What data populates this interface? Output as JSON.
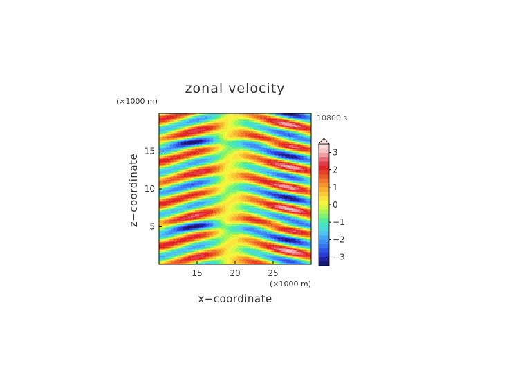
{
  "chart_data": {
    "type": "heatmap",
    "title": "zonal velocity",
    "xlabel": "x−coordinate",
    "ylabel": "z−coordinate",
    "x_unit": "(×1000 m)",
    "y_unit": "(×1000 m)",
    "time_label": "10800 s",
    "xlim": [
      10,
      30
    ],
    "ylim": [
      0,
      20
    ],
    "x_ticks": [
      15,
      20,
      25
    ],
    "y_ticks": [
      5,
      10,
      15
    ],
    "colorbar": {
      "ticks": [
        3,
        2,
        1,
        0,
        -1,
        -2,
        -3
      ],
      "levels": [
        -3.5,
        -3.25,
        -3,
        -2.75,
        -2.5,
        -2.25,
        -2,
        -1.75,
        -1.5,
        -1.25,
        -1,
        -0.75,
        -0.5,
        -0.25,
        0,
        0.25,
        0.5,
        0.75,
        1,
        1.25,
        1.5,
        1.75,
        2,
        2.25,
        2.5,
        2.75,
        3,
        3.25
      ],
      "colors": [
        "#1a1a6e",
        "#2323a0",
        "#2d3ccf",
        "#2f55e6",
        "#3a74f2",
        "#3f8ef6",
        "#46a7f5",
        "#4fc3ee",
        "#4dd9dc",
        "#46e3c0",
        "#55eb9e",
        "#7cf27a",
        "#a6f657",
        "#d4f844",
        "#f4f43e",
        "#f8e43c",
        "#f8cc36",
        "#f6b230",
        "#f3962a",
        "#ef7a28",
        "#ea5c26",
        "#e54024",
        "#e0242a",
        "#e23c46",
        "#ea6b73",
        "#f19da1",
        "#f7c2c4",
        "#fbdcdd"
      ],
      "extend_max": true
    }
  }
}
